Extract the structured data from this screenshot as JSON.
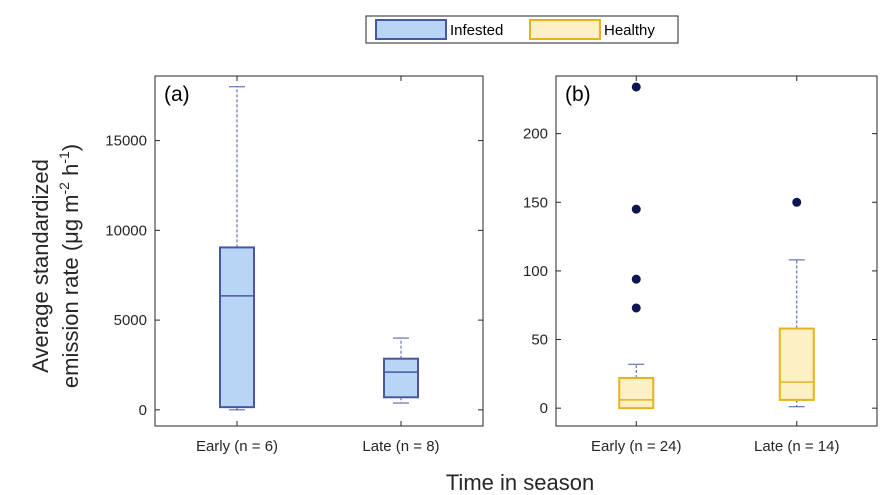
{
  "legend": {
    "items": [
      {
        "label": "Infested",
        "face": "#b7d6f5",
        "edge": "#4a57a0"
      },
      {
        "label": "Healthy",
        "face": "#fdf0c4",
        "edge": "#e6b21f"
      }
    ]
  },
  "ylabel_line1": "Average standardized",
  "ylabel_line2_prefix": "emission rate (μg m",
  "ylabel_sup1": "-2",
  "ylabel_mid": " h",
  "ylabel_sup2": "-1",
  "ylabel_suffix": ")",
  "xlabel": "Time in season",
  "chart_data": [
    {
      "type": "box",
      "panel_label": "(a)",
      "categories": [
        "Early (n = 6)",
        "Late (n = 8)"
      ],
      "ylim": [
        -900,
        18600
      ],
      "yticks": [
        0,
        5000,
        10000,
        15000
      ],
      "ytick_labels": [
        "0",
        "5000",
        "10000",
        "15000"
      ],
      "series": [
        {
          "name": "Infested",
          "boxes": [
            {
              "whisker_low": 0,
              "q1": 150,
              "median": 6350,
              "q3": 9050,
              "whisker_high": 18000,
              "outliers": []
            },
            {
              "whisker_low": 380,
              "q1": 700,
              "median": 2100,
              "q3": 2850,
              "whisker_high": 4000,
              "outliers": []
            }
          ]
        }
      ]
    },
    {
      "type": "box",
      "panel_label": "(b)",
      "categories": [
        "Early (n = 24)",
        "Late (n = 14)"
      ],
      "ylim": [
        -13,
        242
      ],
      "yticks": [
        0,
        50,
        100,
        150,
        200
      ],
      "ytick_labels": [
        "0",
        "50",
        "100",
        "150",
        "200"
      ],
      "series": [
        {
          "name": "Healthy",
          "boxes": [
            {
              "whisker_low": 0,
              "q1": 0,
              "median": 6,
              "q3": 22,
              "whisker_high": 32,
              "outliers": [
                73,
                94,
                145,
                234
              ]
            },
            {
              "whisker_low": 1,
              "q1": 6,
              "median": 19,
              "q3": 58,
              "whisker_high": 108,
              "outliers": [
                150
              ]
            }
          ]
        }
      ]
    }
  ]
}
